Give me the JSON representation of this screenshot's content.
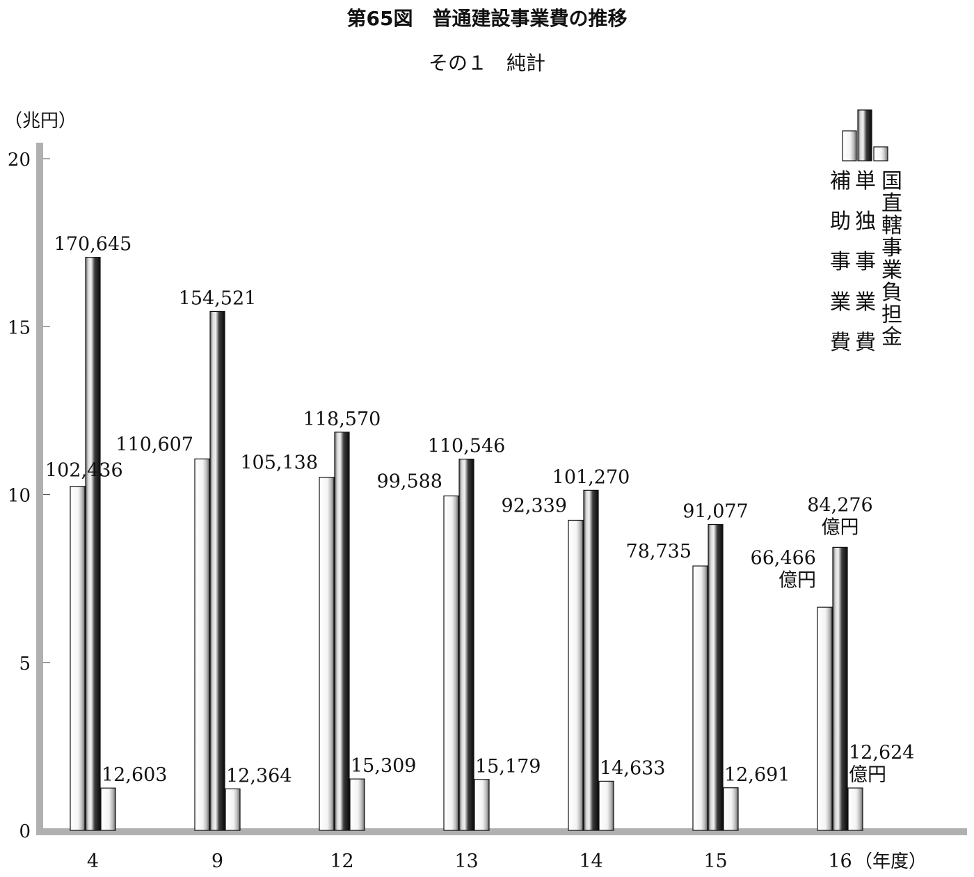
{
  "title": "第65図　普通建設事業費の推移",
  "subtitle": "その１　純計",
  "colors": {
    "background": "#ffffff",
    "axis": "#b0b0b0",
    "text": "#111111",
    "bar_outline": "#111111"
  },
  "chart_data": {
    "type": "bar",
    "title": "第65図　普通建設事業費の推移",
    "subtitle": "その１　純計",
    "ylabel": "（兆円）",
    "xlabel": "（年度）",
    "ylim": [
      0,
      20
    ],
    "yticks": [
      0,
      5,
      10,
      15,
      20
    ],
    "grid": false,
    "legend_position": "top-right",
    "categories": [
      "4",
      "9",
      "12",
      "13",
      "14",
      "15",
      "16"
    ],
    "value_unit_note": "億円",
    "series": [
      {
        "name": "補助事業費",
        "style": "light",
        "values_oku_yen": [
          102436,
          110607,
          105138,
          99588,
          92339,
          78735,
          66466
        ],
        "labels": [
          "102,436",
          "110,607",
          "105,138",
          "99,588",
          "92,339",
          "78,735",
          "66,466"
        ]
      },
      {
        "name": "単独事業費",
        "style": "dark",
        "values_oku_yen": [
          170645,
          154521,
          118570,
          110546,
          101270,
          91077,
          84276
        ],
        "labels": [
          "170,645",
          "154,521",
          "118,570",
          "110,546",
          "101,270",
          "91,077",
          "84,276"
        ]
      },
      {
        "name": "国直轄事業負担金",
        "style": "light",
        "values_oku_yen": [
          12603,
          12364,
          15309,
          15179,
          14633,
          12691,
          12624
        ],
        "labels": [
          "12,603",
          "12,364",
          "15,309",
          "15,179",
          "14,633",
          "12,691",
          "12,624"
        ]
      }
    ]
  }
}
